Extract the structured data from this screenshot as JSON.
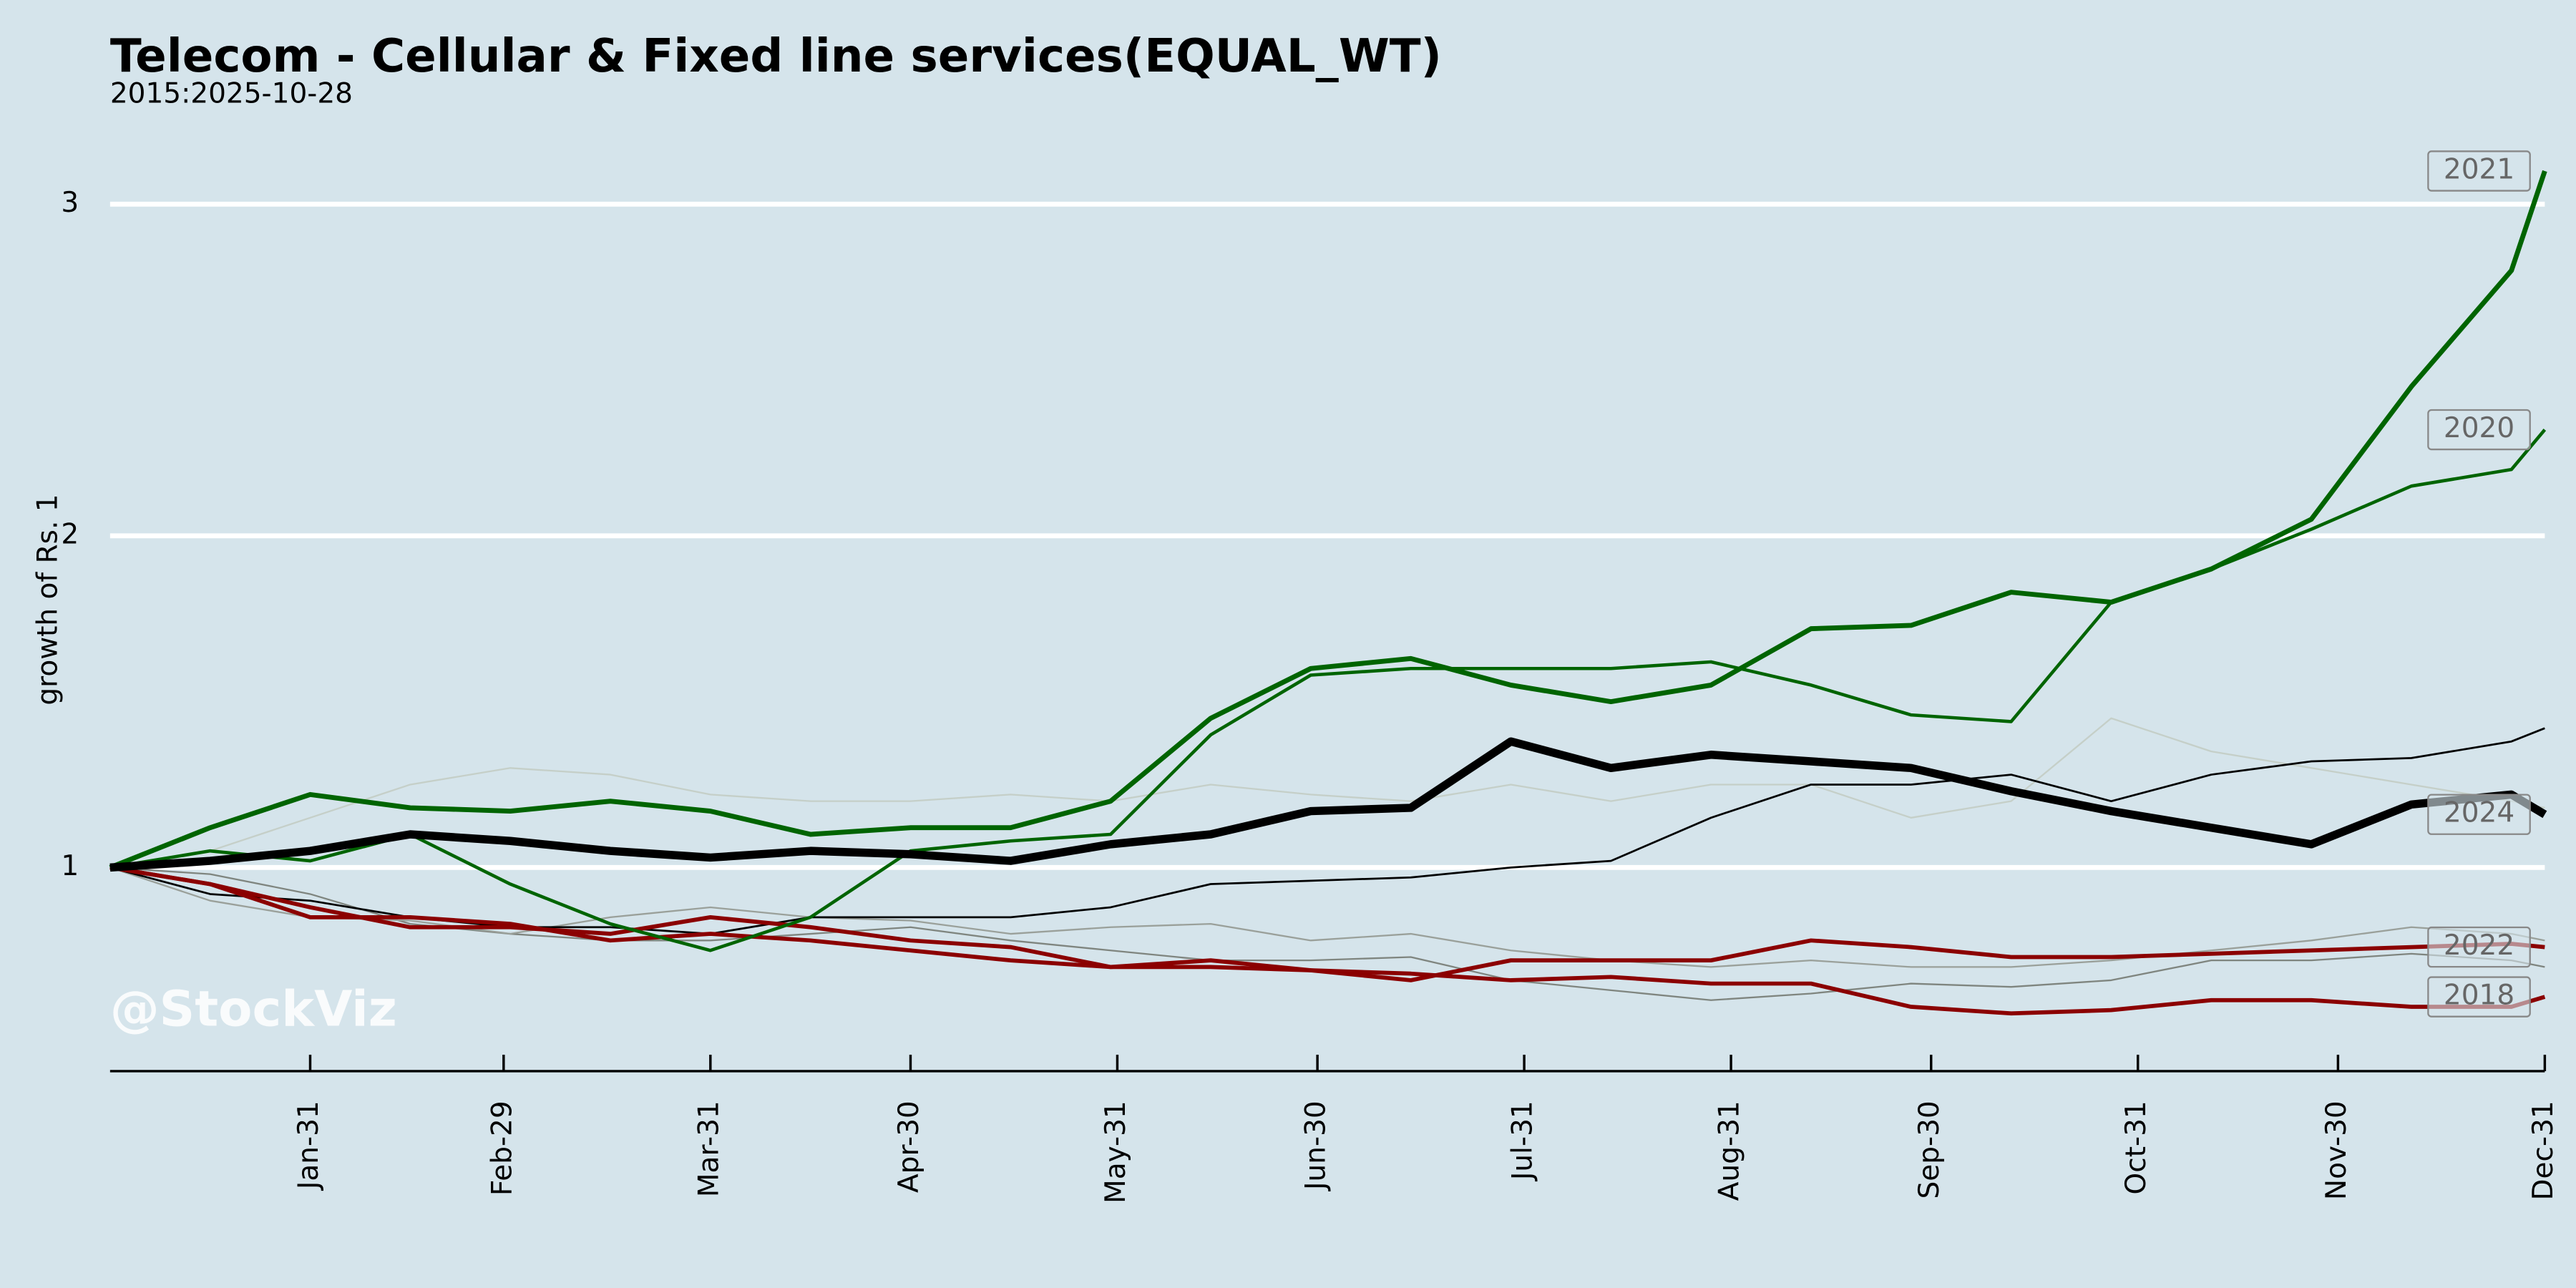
{
  "chart_data": {
    "type": "line",
    "title": "Telecom - Cellular & Fixed line services(EQUAL_WT)",
    "subtitle": "2015:2025-10-28",
    "y_label": "growth of Rs. 1",
    "watermark": "@StockViz",
    "grid": true,
    "ylim": [
      0.386,
      3.15
    ],
    "yticks": [
      1,
      2,
      3
    ],
    "xlim": [
      0,
      365
    ],
    "xticks": [
      {
        "value": 30,
        "label": "Jan-31"
      },
      {
        "value": 59,
        "label": "Feb-29"
      },
      {
        "value": 90,
        "label": "Mar-31"
      },
      {
        "value": 120,
        "label": "Apr-30"
      },
      {
        "value": 151,
        "label": "May-31"
      },
      {
        "value": 181,
        "label": "Jun-30"
      },
      {
        "value": 212,
        "label": "Jul-31"
      },
      {
        "value": 243,
        "label": "Aug-31"
      },
      {
        "value": 273,
        "label": "Sep-30"
      },
      {
        "value": 304,
        "label": "Oct-31"
      },
      {
        "value": 334,
        "label": "Nov-30"
      },
      {
        "value": 365,
        "label": "Dec-31"
      }
    ],
    "x": [
      0,
      15,
      30,
      45,
      60,
      75,
      90,
      105,
      120,
      135,
      150,
      165,
      180,
      195,
      210,
      225,
      240,
      255,
      270,
      285,
      300,
      315,
      330,
      345,
      360,
      365
    ],
    "series": [
      {
        "color": "#c5cfc8",
        "width": 1,
        "values": [
          1,
          1.05,
          1.15,
          1.25,
          1.3,
          1.28,
          1.22,
          1.2,
          1.2,
          1.22,
          1.2,
          1.25,
          1.22,
          1.2,
          1.25,
          1.2,
          1.25,
          1.25,
          1.15,
          1.2,
          1.45,
          1.35,
          1.3,
          1.25,
          1.2,
          1.18
        ]
      },
      {
        "color": "#7f857f",
        "width": 1,
        "values": [
          1,
          0.98,
          0.92,
          0.83,
          0.8,
          0.78,
          0.78,
          0.8,
          0.82,
          0.78,
          0.75,
          0.72,
          0.72,
          0.73,
          0.66,
          0.63,
          0.6,
          0.62,
          0.65,
          0.64,
          0.66,
          0.72,
          0.72,
          0.74,
          0.72,
          0.7
        ]
      },
      {
        "color": "#9aa09a",
        "width": 1,
        "values": [
          1,
          0.9,
          0.85,
          0.84,
          0.8,
          0.85,
          0.88,
          0.85,
          0.84,
          0.8,
          0.82,
          0.83,
          0.78,
          0.8,
          0.75,
          0.72,
          0.7,
          0.72,
          0.7,
          0.7,
          0.72,
          0.75,
          0.78,
          0.82,
          0.8,
          0.78
        ]
      },
      {
        "color": "#000000",
        "width": 1.2,
        "values": [
          1,
          0.92,
          0.9,
          0.85,
          0.82,
          0.82,
          0.8,
          0.85,
          0.85,
          0.85,
          0.88,
          0.95,
          0.96,
          0.97,
          1,
          1.02,
          1.15,
          1.25,
          1.25,
          1.28,
          1.2,
          1.28,
          1.32,
          1.33,
          1.38,
          1.42
        ]
      },
      {
        "name": "2018",
        "color": "#8b0000",
        "width": 2.5,
        "values": [
          1,
          0.95,
          0.88,
          0.82,
          0.82,
          0.8,
          0.85,
          0.82,
          0.78,
          0.76,
          0.7,
          0.72,
          0.69,
          0.68,
          0.66,
          0.67,
          0.65,
          0.65,
          0.58,
          0.56,
          0.57,
          0.6,
          0.6,
          0.58,
          0.58,
          0.61
        ]
      },
      {
        "name": "2022",
        "color": "#8b0000",
        "width": 2.5,
        "values": [
          1,
          0.95,
          0.85,
          0.85,
          0.83,
          0.78,
          0.8,
          0.78,
          0.75,
          0.72,
          0.7,
          0.7,
          0.69,
          0.66,
          0.72,
          0.72,
          0.72,
          0.78,
          0.76,
          0.73,
          0.73,
          0.74,
          0.75,
          0.76,
          0.77,
          0.76
        ]
      },
      {
        "name": "2020",
        "color": "#006400",
        "width": 2,
        "values": [
          1,
          1.05,
          1.02,
          1.1,
          0.95,
          0.83,
          0.75,
          0.85,
          1.05,
          1.08,
          1.1,
          1.4,
          1.58,
          1.6,
          1.6,
          1.6,
          1.62,
          1.55,
          1.46,
          1.44,
          1.8,
          1.9,
          2.02,
          2.15,
          2.2,
          2.32
        ]
      },
      {
        "name": "2021",
        "color": "#006400",
        "width": 3,
        "values": [
          1,
          1.12,
          1.22,
          1.18,
          1.17,
          1.2,
          1.17,
          1.1,
          1.12,
          1.12,
          1.2,
          1.45,
          1.6,
          1.63,
          1.55,
          1.5,
          1.55,
          1.72,
          1.73,
          1.83,
          1.8,
          1.9,
          2.05,
          2.45,
          2.8,
          3.1
        ]
      },
      {
        "name": "2024",
        "color": "#000000",
        "width": 5,
        "values": [
          1,
          1.02,
          1.05,
          1.1,
          1.08,
          1.05,
          1.03,
          1.05,
          1.04,
          1.02,
          1.07,
          1.1,
          1.17,
          1.18,
          1.38,
          1.3,
          1.34,
          1.32,
          1.3,
          1.23,
          1.17,
          1.12,
          1.07,
          1.19,
          1.22,
          1.16
        ]
      }
    ]
  }
}
